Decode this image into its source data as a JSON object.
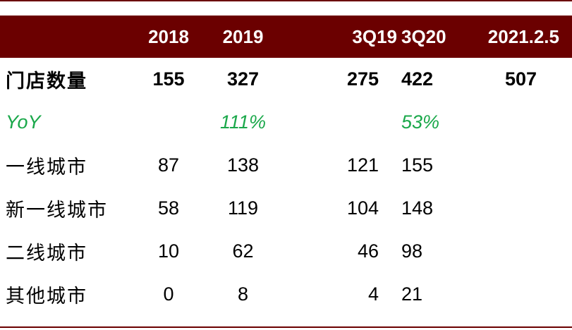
{
  "table": {
    "columns": [
      "",
      "2018",
      "2019",
      "3Q19",
      "3Q20",
      "2021.2.5"
    ],
    "rows": [
      {
        "label": "门店数量",
        "values": [
          "155",
          "327",
          "275",
          "422",
          "507"
        ]
      },
      {
        "label": "YoY",
        "values": [
          "",
          "111%",
          "",
          "53%",
          ""
        ]
      },
      {
        "label": "一线城市",
        "values": [
          "87",
          "138",
          "121",
          "155",
          ""
        ]
      },
      {
        "label": "新一线城市",
        "values": [
          "58",
          "119",
          "104",
          "148",
          ""
        ]
      },
      {
        "label": "二线城市",
        "values": [
          "10",
          "62",
          "46",
          "98",
          ""
        ]
      },
      {
        "label": "其他城市",
        "values": [
          "0",
          "8",
          "4",
          "21",
          ""
        ]
      }
    ]
  },
  "colors": {
    "header_bg": "#6b0000",
    "header_text": "#ffffff",
    "yoy_text": "#1aa84a",
    "rule": "#6b0000"
  }
}
